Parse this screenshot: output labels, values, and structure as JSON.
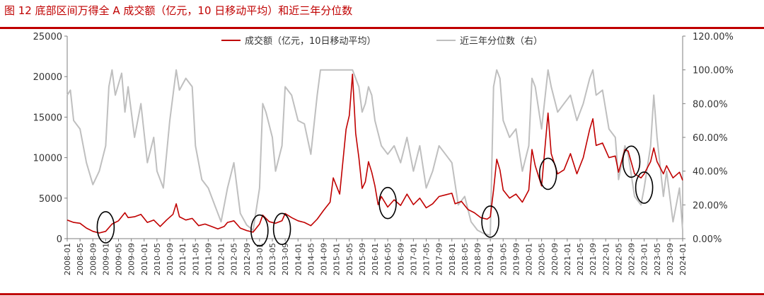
{
  "header": {
    "title": "图 12 底部区间万得全 A 成交额（亿元，10 日移动平均）和近三年分位数"
  },
  "colors": {
    "accent": "#c00000",
    "turnover": "#c00000",
    "percentile": "#bfbfbf",
    "circle": "#000000"
  },
  "chart_data": {
    "type": "line",
    "legend_position": "top-center",
    "grid": false,
    "x_range": [
      "2008-01",
      "2024-01"
    ],
    "y_left": {
      "min": 0,
      "max": 25000,
      "ticks": [
        "0",
        "5000",
        "10000",
        "15000",
        "20000",
        "25000"
      ]
    },
    "y_right": {
      "min": 0,
      "max": 120,
      "unit": "%",
      "ticks": [
        "0.00%",
        "20.00%",
        "40.00%",
        "60.00%",
        "80.00%",
        "100.00%",
        "120.00%"
      ]
    },
    "x_ticks": [
      "2008-01",
      "2008-05",
      "2008-09",
      "2009-01",
      "2009-05",
      "2009-09",
      "2010-01",
      "2010-05",
      "2010-09",
      "2011-01",
      "2011-05",
      "2011-09",
      "2012-01",
      "2012-05",
      "2012-09",
      "2013-01",
      "2013-05",
      "2013-09",
      "2014-01",
      "2014-05",
      "2014-09",
      "2015-01",
      "2015-05",
      "2015-09",
      "2016-01",
      "2016-05",
      "2016-09",
      "2017-01",
      "2017-05",
      "2017-09",
      "2018-01",
      "2018-05",
      "2018-09",
      "2019-01",
      "2019-05",
      "2019-09",
      "2020-01",
      "2020-05",
      "2020-09",
      "2021-01",
      "2021-05",
      "2021-09",
      "2022-01",
      "2022-05",
      "2022-09",
      "2023-01",
      "2023-05",
      "2023-09",
      "2024-01"
    ],
    "series": [
      {
        "name": "成交额（亿元，10日移动平均）",
        "axis": "left",
        "color": "#c00000",
        "points": [
          [
            "2008-01",
            2300
          ],
          [
            "2008-03",
            2000
          ],
          [
            "2008-05",
            1900
          ],
          [
            "2008-07",
            1300
          ],
          [
            "2008-09",
            900
          ],
          [
            "2008-11",
            700
          ],
          [
            "2009-01",
            900
          ],
          [
            "2009-03",
            1800
          ],
          [
            "2009-05",
            2200
          ],
          [
            "2009-07",
            3200
          ],
          [
            "2009-08",
            2600
          ],
          [
            "2009-10",
            2700
          ],
          [
            "2009-12",
            3000
          ],
          [
            "2010-02",
            2000
          ],
          [
            "2010-04",
            2300
          ],
          [
            "2010-06",
            1500
          ],
          [
            "2010-08",
            2300
          ],
          [
            "2010-10",
            3000
          ],
          [
            "2010-11",
            4300
          ],
          [
            "2010-12",
            2700
          ],
          [
            "2011-02",
            2300
          ],
          [
            "2011-04",
            2500
          ],
          [
            "2011-06",
            1600
          ],
          [
            "2011-08",
            1800
          ],
          [
            "2011-10",
            1500
          ],
          [
            "2011-12",
            1200
          ],
          [
            "2012-02",
            1500
          ],
          [
            "2012-03",
            2000
          ],
          [
            "2012-05",
            2200
          ],
          [
            "2012-07",
            1300
          ],
          [
            "2012-09",
            1000
          ],
          [
            "2012-11",
            800
          ],
          [
            "2013-01",
            1800
          ],
          [
            "2013-02",
            2900
          ],
          [
            "2013-04",
            2100
          ],
          [
            "2013-06",
            1900
          ],
          [
            "2013-08",
            2200
          ],
          [
            "2013-09",
            3100
          ],
          [
            "2013-11",
            2600
          ],
          [
            "2014-01",
            2200
          ],
          [
            "2014-03",
            2000
          ],
          [
            "2014-05",
            1600
          ],
          [
            "2014-07",
            2400
          ],
          [
            "2014-09",
            3500
          ],
          [
            "2014-11",
            4500
          ],
          [
            "2014-12",
            7500
          ],
          [
            "2015-01",
            6500
          ],
          [
            "2015-02",
            5500
          ],
          [
            "2015-03",
            9500
          ],
          [
            "2015-04",
            13500
          ],
          [
            "2015-05",
            15200
          ],
          [
            "2015-06",
            20300
          ],
          [
            "2015-07",
            13000
          ],
          [
            "2015-08",
            10000
          ],
          [
            "2015-09",
            6200
          ],
          [
            "2015-10",
            7000
          ],
          [
            "2015-11",
            9500
          ],
          [
            "2015-12",
            8200
          ],
          [
            "2016-01",
            6500
          ],
          [
            "2016-02",
            4200
          ],
          [
            "2016-03",
            5200
          ],
          [
            "2016-05",
            3900
          ],
          [
            "2016-07",
            4800
          ],
          [
            "2016-09",
            4100
          ],
          [
            "2016-11",
            5500
          ],
          [
            "2017-01",
            4200
          ],
          [
            "2017-03",
            5000
          ],
          [
            "2017-05",
            3800
          ],
          [
            "2017-07",
            4300
          ],
          [
            "2017-09",
            5200
          ],
          [
            "2017-11",
            5400
          ],
          [
            "2018-01",
            5600
          ],
          [
            "2018-02",
            4300
          ],
          [
            "2018-04",
            4600
          ],
          [
            "2018-06",
            3600
          ],
          [
            "2018-08",
            3200
          ],
          [
            "2018-10",
            2600
          ],
          [
            "2018-12",
            2400
          ],
          [
            "2019-01",
            2700
          ],
          [
            "2019-02",
            6000
          ],
          [
            "2019-03",
            9800
          ],
          [
            "2019-04",
            8500
          ],
          [
            "2019-05",
            6000
          ],
          [
            "2019-07",
            5000
          ],
          [
            "2019-09",
            5500
          ],
          [
            "2019-11",
            4500
          ],
          [
            "2020-01",
            6000
          ],
          [
            "2020-02",
            11000
          ],
          [
            "2020-03",
            9000
          ],
          [
            "2020-05",
            6500
          ],
          [
            "2020-07",
            15500
          ],
          [
            "2020-08",
            10500
          ],
          [
            "2020-10",
            8000
          ],
          [
            "2020-12",
            8500
          ],
          [
            "2021-02",
            10500
          ],
          [
            "2021-04",
            8000
          ],
          [
            "2021-06",
            10000
          ],
          [
            "2021-08",
            13500
          ],
          [
            "2021-09",
            14800
          ],
          [
            "2021-10",
            11500
          ],
          [
            "2021-12",
            11800
          ],
          [
            "2022-02",
            10000
          ],
          [
            "2022-04",
            10200
          ],
          [
            "2022-05",
            8200
          ],
          [
            "2022-07",
            11000
          ],
          [
            "2022-08",
            10800
          ],
          [
            "2022-10",
            8000
          ],
          [
            "2022-12",
            7500
          ],
          [
            "2023-01",
            8000
          ],
          [
            "2023-03",
            9500
          ],
          [
            "2023-04",
            11200
          ],
          [
            "2023-05",
            9500
          ],
          [
            "2023-07",
            8000
          ],
          [
            "2023-08",
            9000
          ],
          [
            "2023-10",
            7500
          ],
          [
            "2023-12",
            8200
          ],
          [
            "2024-01",
            7200
          ]
        ]
      },
      {
        "name": "近三年分位数（右）",
        "axis": "right",
        "color": "#bfbfbf",
        "points": [
          [
            "2008-01",
            85
          ],
          [
            "2008-02",
            88
          ],
          [
            "2008-03",
            70
          ],
          [
            "2008-05",
            65
          ],
          [
            "2008-07",
            45
          ],
          [
            "2008-09",
            32
          ],
          [
            "2008-11",
            40
          ],
          [
            "2009-01",
            55
          ],
          [
            "2009-02",
            90
          ],
          [
            "2009-03",
            100
          ],
          [
            "2009-04",
            85
          ],
          [
            "2009-06",
            98
          ],
          [
            "2009-07",
            75
          ],
          [
            "2009-08",
            90
          ],
          [
            "2009-10",
            60
          ],
          [
            "2009-12",
            80
          ],
          [
            "2010-02",
            45
          ],
          [
            "2010-04",
            60
          ],
          [
            "2010-05",
            40
          ],
          [
            "2010-07",
            30
          ],
          [
            "2010-09",
            70
          ],
          [
            "2010-11",
            100
          ],
          [
            "2010-12",
            88
          ],
          [
            "2011-02",
            95
          ],
          [
            "2011-04",
            90
          ],
          [
            "2011-05",
            55
          ],
          [
            "2011-07",
            35
          ],
          [
            "2011-09",
            30
          ],
          [
            "2011-11",
            20
          ],
          [
            "2012-01",
            10
          ],
          [
            "2012-03",
            30
          ],
          [
            "2012-05",
            45
          ],
          [
            "2012-07",
            15
          ],
          [
            "2012-09",
            8
          ],
          [
            "2012-11",
            5
          ],
          [
            "2013-01",
            30
          ],
          [
            "2013-02",
            80
          ],
          [
            "2013-03",
            75
          ],
          [
            "2013-05",
            60
          ],
          [
            "2013-06",
            40
          ],
          [
            "2013-08",
            55
          ],
          [
            "2013-09",
            90
          ],
          [
            "2013-11",
            85
          ],
          [
            "2014-01",
            70
          ],
          [
            "2014-03",
            68
          ],
          [
            "2014-05",
            50
          ],
          [
            "2014-07",
            85
          ],
          [
            "2014-08",
            100
          ],
          [
            "2014-10",
            100
          ],
          [
            "2014-12",
            100
          ],
          [
            "2015-02",
            100
          ],
          [
            "2015-04",
            100
          ],
          [
            "2015-06",
            100
          ],
          [
            "2015-07",
            95
          ],
          [
            "2015-08",
            90
          ],
          [
            "2015-09",
            75
          ],
          [
            "2015-10",
            80
          ],
          [
            "2015-11",
            90
          ],
          [
            "2015-12",
            85
          ],
          [
            "2016-01",
            70
          ],
          [
            "2016-03",
            55
          ],
          [
            "2016-05",
            50
          ],
          [
            "2016-07",
            55
          ],
          [
            "2016-09",
            45
          ],
          [
            "2016-11",
            60
          ],
          [
            "2017-01",
            40
          ],
          [
            "2017-03",
            55
          ],
          [
            "2017-05",
            30
          ],
          [
            "2017-07",
            40
          ],
          [
            "2017-09",
            55
          ],
          [
            "2017-11",
            50
          ],
          [
            "2018-01",
            45
          ],
          [
            "2018-03",
            20
          ],
          [
            "2018-05",
            25
          ],
          [
            "2018-07",
            10
          ],
          [
            "2018-09",
            5
          ],
          [
            "2018-11",
            3
          ],
          [
            "2019-01",
            2
          ],
          [
            "2019-02",
            90
          ],
          [
            "2019-03",
            100
          ],
          [
            "2019-04",
            95
          ],
          [
            "2019-05",
            70
          ],
          [
            "2019-07",
            60
          ],
          [
            "2019-09",
            65
          ],
          [
            "2019-11",
            40
          ],
          [
            "2020-01",
            55
          ],
          [
            "2020-02",
            95
          ],
          [
            "2020-03",
            90
          ],
          [
            "2020-05",
            65
          ],
          [
            "2020-07",
            100
          ],
          [
            "2020-08",
            90
          ],
          [
            "2020-10",
            75
          ],
          [
            "2020-12",
            80
          ],
          [
            "2021-02",
            85
          ],
          [
            "2021-04",
            70
          ],
          [
            "2021-06",
            80
          ],
          [
            "2021-08",
            95
          ],
          [
            "2021-09",
            100
          ],
          [
            "2021-10",
            85
          ],
          [
            "2021-12",
            88
          ],
          [
            "2022-02",
            65
          ],
          [
            "2022-04",
            60
          ],
          [
            "2022-05",
            35
          ],
          [
            "2022-07",
            55
          ],
          [
            "2022-08",
            50
          ],
          [
            "2022-10",
            25
          ],
          [
            "2022-12",
            20
          ],
          [
            "2023-01",
            30
          ],
          [
            "2023-03",
            55
          ],
          [
            "2023-04",
            85
          ],
          [
            "2023-05",
            60
          ],
          [
            "2023-07",
            25
          ],
          [
            "2023-08",
            40
          ],
          [
            "2023-10",
            10
          ],
          [
            "2023-12",
            30
          ],
          [
            "2024-01",
            5
          ]
        ]
      }
    ],
    "annotations": {
      "type": "ellipse",
      "label": "bottom-range markers",
      "items": [
        {
          "at": "2009-01",
          "value": 1400
        },
        {
          "at": "2013-01",
          "value": 1000
        },
        {
          "at": "2013-08",
          "value": 1200
        },
        {
          "at": "2016-05",
          "value": 4400
        },
        {
          "at": "2019-01",
          "value": 2100
        },
        {
          "at": "2020-07",
          "value": 8000
        },
        {
          "at": "2022-09",
          "value": 9500
        },
        {
          "at": "2023-01",
          "value": 6300
        }
      ]
    }
  }
}
